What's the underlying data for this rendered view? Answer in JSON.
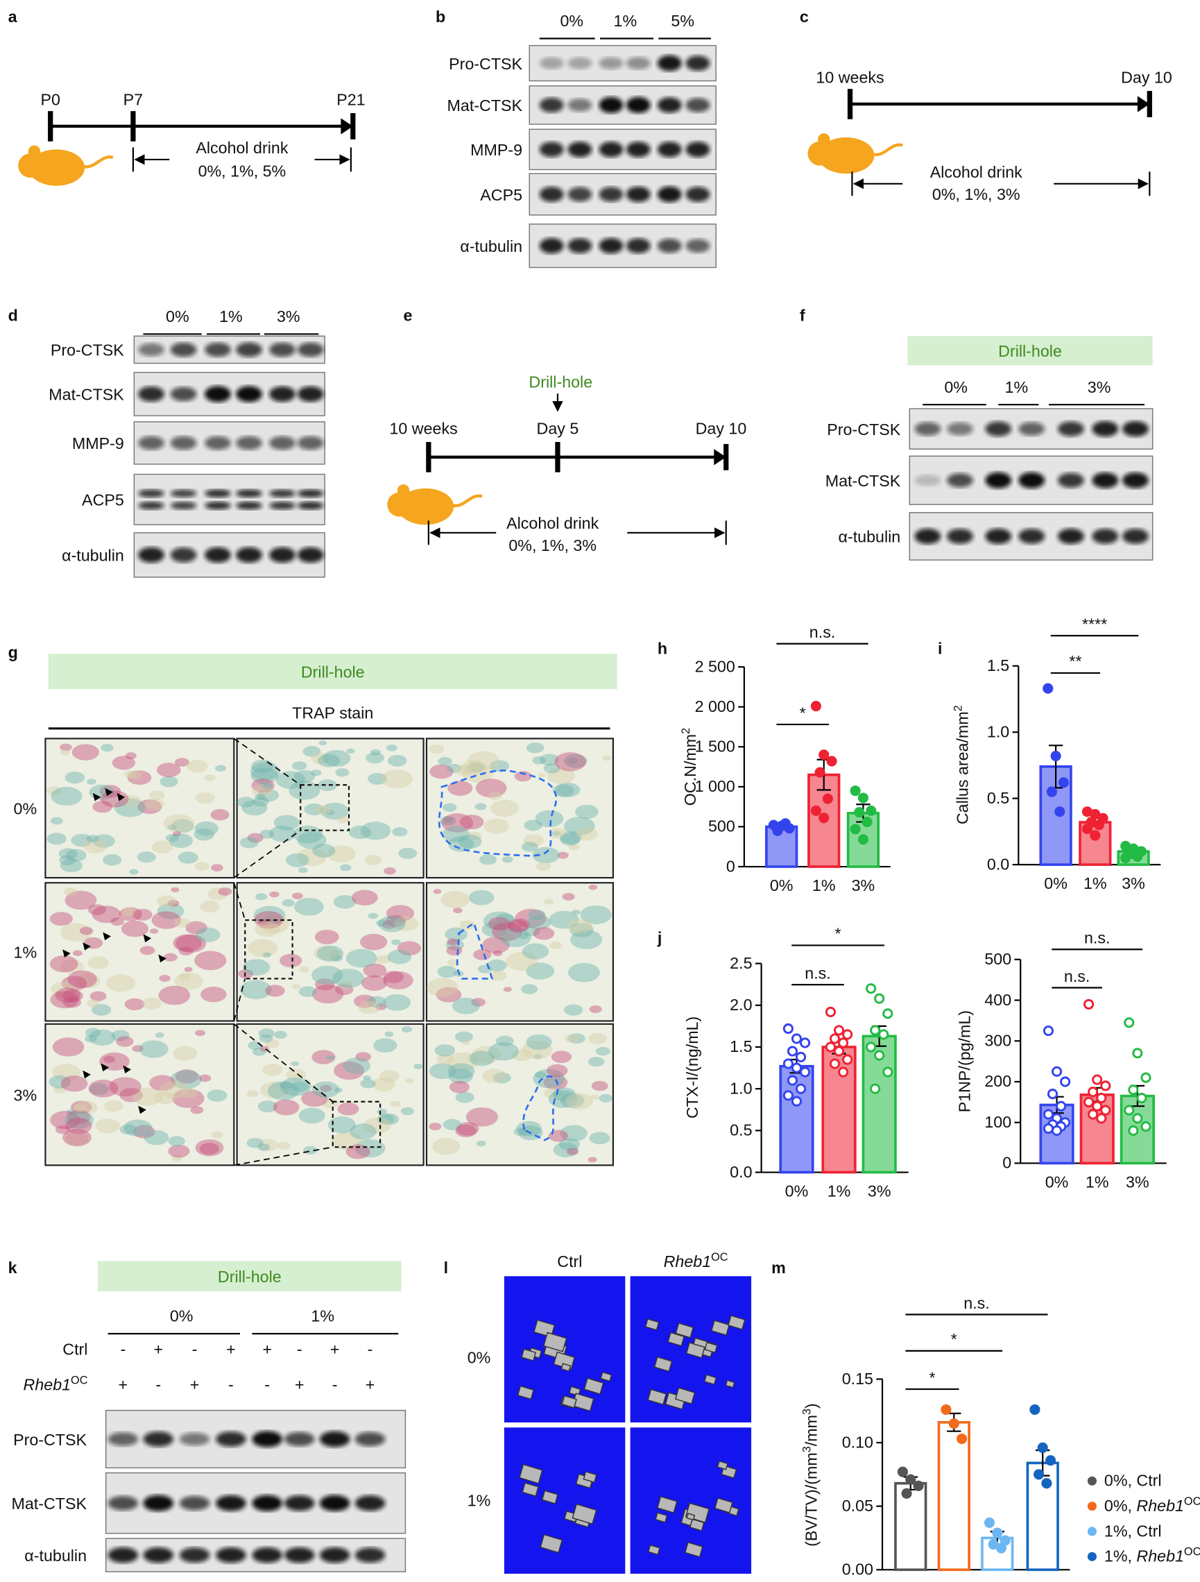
{
  "panel_labels": [
    "a",
    "b",
    "c",
    "d",
    "e",
    "f",
    "g",
    "h",
    "i",
    "j",
    "k",
    "l",
    "m"
  ],
  "timeline_a": {
    "start": "P0",
    "mid": "P7",
    "end": "P21",
    "caption": [
      "Alcohol drink",
      "0%, 1%, 5%"
    ]
  },
  "blot_b": {
    "groups": [
      "0%",
      "1%",
      "5%"
    ],
    "rows": [
      "Pro-CTSK",
      "Mat-CTSK",
      "MMP-9",
      "ACP5",
      "α-tubulin"
    ]
  },
  "timeline_c": {
    "start": "10 weeks",
    "end": "Day 10",
    "caption": [
      "Alcohol drink",
      "0%, 1%, 3%"
    ]
  },
  "blot_d": {
    "groups": [
      "0%",
      "1%",
      "3%"
    ],
    "rows": [
      "Pro-CTSK",
      "Mat-CTSK",
      "MMP-9",
      "ACP5",
      "α-tubulin"
    ]
  },
  "timeline_e": {
    "start": "10 weeks",
    "mid": "Day 5",
    "end": "Day 10",
    "event": "Drill-hole",
    "caption": [
      "Alcohol drink",
      "0%, 1%, 3%"
    ]
  },
  "blot_f": {
    "banner": "Drill-hole",
    "groups": [
      "0%",
      "1%",
      "3%"
    ],
    "rows": [
      "Pro-CTSK",
      "Mat-CTSK",
      "α-tubulin"
    ]
  },
  "histology_g": {
    "banner": "Drill-hole",
    "title": "TRAP stain",
    "rows": [
      "0%",
      "1%",
      "3%"
    ]
  },
  "chart_data": [
    {
      "type": "bar",
      "ylabel": [
        {
          "text": "OC.N/mm"
        },
        {
          "text": "2",
          "sup": true
        }
      ],
      "categories": [
        "0%",
        "1%",
        "3%"
      ],
      "values": [
        500,
        1150,
        670
      ],
      "errors": [
        30,
        190,
        110
      ],
      "points": [
        [
          520,
          510,
          480,
          450,
          540
        ],
        [
          2010,
          1400,
          1320,
          1180,
          850,
          700,
          610
        ],
        [
          950,
          860,
          700,
          680,
          560,
          470,
          340
        ]
      ],
      "colors": [
        "#3344ee",
        "#ee2233",
        "#22bb44"
      ],
      "bar_style": "filled",
      "point_style": "filled",
      "ylim": [
        0,
        2500
      ],
      "yticks": [
        0,
        500,
        {
          "value": 1000,
          "label": "1 000"
        },
        {
          "value": 1500,
          "label": "1 500"
        },
        {
          "value": 2000,
          "label": "2 000"
        },
        {
          "value": 2500,
          "label": "2 500"
        }
      ],
      "significance": [
        {
          "from": 0,
          "to": 1,
          "label": "*"
        },
        {
          "from": 0,
          "to": 2,
          "label": "n.s."
        }
      ]
    },
    {
      "type": "bar",
      "ylabel": [
        {
          "text": "Callus area/mm"
        },
        {
          "text": "2",
          "sup": true
        }
      ],
      "categories": [
        "0%",
        "1%",
        "3%"
      ],
      "values": [
        0.74,
        0.32,
        0.1
      ],
      "errors": [
        0.16,
        0.03,
        0.02
      ],
      "points": [
        [
          1.33,
          0.82,
          0.62,
          0.55,
          0.4
        ],
        [
          0.4,
          0.38,
          0.35,
          0.32,
          0.3,
          0.27,
          0.22
        ],
        [
          0.14,
          0.12,
          0.1,
          0.08,
          0.06,
          0.05
        ]
      ],
      "colors": [
        "#3344ee",
        "#ee2233",
        "#22bb44"
      ],
      "bar_style": "filled",
      "point_style": "filled",
      "ylim": [
        0,
        1.5
      ],
      "yticks": [
        {
          "value": 0,
          "label": "0.0"
        },
        0.5,
        {
          "value": 1,
          "label": "1.0"
        },
        1.5
      ],
      "significance": [
        {
          "from": 0,
          "to": 1,
          "label": "**"
        },
        {
          "from": 0,
          "to": 2,
          "label": "****"
        }
      ]
    },
    {
      "type": "bar",
      "ylabel": "CTX-I/(ng/mL)",
      "categories": [
        "0%",
        "1%",
        "3%"
      ],
      "values": [
        1.27,
        1.5,
        1.63
      ],
      "errors": [
        0.08,
        0.08,
        0.12
      ],
      "points": [
        [
          1.72,
          1.6,
          1.55,
          1.45,
          1.38,
          1.3,
          1.25,
          1.2,
          1.1,
          1.0,
          0.92,
          0.85
        ],
        [
          1.92,
          1.7,
          1.65,
          1.6,
          1.55,
          1.5,
          1.45,
          1.35,
          1.3,
          1.2
        ],
        [
          2.2,
          2.08,
          1.9,
          1.7,
          1.65,
          1.5,
          1.4,
          1.2,
          1.0
        ]
      ],
      "colors": [
        "#3344ee",
        "#ee2233",
        "#22bb44"
      ],
      "bar_style": "filled",
      "point_style": "open",
      "ylim": [
        0,
        2.5
      ],
      "yticks": [
        {
          "value": 0,
          "label": "0.0"
        },
        0.5,
        {
          "value": 1,
          "label": "1.0"
        },
        1.5,
        {
          "value": 2,
          "label": "2.0"
        },
        2.5
      ],
      "significance": [
        {
          "from": 0,
          "to": 1,
          "label": "n.s."
        },
        {
          "from": 0,
          "to": 2,
          "label": "*"
        }
      ]
    },
    {
      "type": "bar",
      "ylabel": "P1NP/(pg/mL)",
      "categories": [
        "0%",
        "1%",
        "3%"
      ],
      "values": [
        143,
        168,
        165
      ],
      "errors": [
        20,
        17,
        25
      ],
      "points": [
        [
          325,
          225,
          200,
          170,
          140,
          120,
          110,
          100,
          95,
          90,
          85,
          80
        ],
        [
          390,
          205,
          190,
          175,
          160,
          150,
          140,
          130,
          120,
          110
        ],
        [
          345,
          270,
          210,
          180,
          160,
          130,
          110,
          90,
          80
        ]
      ],
      "colors": [
        "#3344ee",
        "#ee2233",
        "#22bb44"
      ],
      "bar_style": "filled",
      "point_style": "open",
      "ylim": [
        0,
        500
      ],
      "yticks": [
        0,
        100,
        200,
        300,
        400,
        500
      ],
      "significance": [
        {
          "from": 0,
          "to": 1,
          "label": "n.s."
        },
        {
          "from": 0,
          "to": 2,
          "label": "n.s."
        }
      ]
    },
    {
      "type": "bar",
      "ylabel": [
        {
          "text": "(BV/TV)/(mm"
        },
        {
          "text": "3",
          "sup": true
        },
        {
          "text": "/mm"
        },
        {
          "text": "3",
          "sup": true
        },
        {
          "text": ")"
        }
      ],
      "categories": [
        "0%, Ctrl",
        [
          {
            "text": "0%, "
          },
          {
            "text": "Rheb1",
            "italic": true
          },
          {
            "text": "OC",
            "sup": true
          }
        ],
        "1%, Ctrl",
        [
          {
            "text": "1%, "
          },
          {
            "text": "Rheb1",
            "italic": true
          },
          {
            "text": "OC",
            "sup": true
          }
        ]
      ],
      "values": [
        0.068,
        0.116,
        0.025,
        0.084
      ],
      "errors": [
        0.005,
        0.007,
        0.005,
        0.01
      ],
      "points": [
        [
          0.077,
          0.071,
          0.066,
          0.06
        ],
        [
          0.126,
          0.115,
          0.103
        ],
        [
          0.037,
          0.029,
          0.023,
          0.02,
          0.017
        ],
        [
          0.126,
          0.096,
          0.086,
          0.075,
          0.068
        ]
      ],
      "colors": [
        "#555555",
        "#f26a1b",
        "#6cb6f2",
        "#1565c0"
      ],
      "bar_style": "open",
      "point_style": "filled",
      "legend": "lower right",
      "ylim": [
        0,
        0.15
      ],
      "yticks": [
        {
          "value": 0,
          "label": "0.00"
        },
        0.05,
        {
          "value": 0.1,
          "label": "0.10"
        },
        0.15
      ],
      "significance": [
        {
          "from": 0,
          "to": 1,
          "label": "*"
        },
        {
          "from": 0,
          "to": 2,
          "label": "*"
        },
        {
          "from": 0,
          "to": 3,
          "label": "n.s."
        }
      ]
    }
  ],
  "blot_k": {
    "banner": "Drill-hole",
    "groups": [
      "0%",
      "1%"
    ],
    "row_labels": [
      "Ctrl",
      [
        {
          "text": "Rheb1",
          "italic": true
        },
        {
          "text": "OC",
          "sup": true
        }
      ]
    ],
    "signs": [
      [
        "-",
        "+",
        "-",
        "+",
        "+",
        "-",
        "+",
        "-"
      ],
      [
        "+",
        "-",
        "+",
        "-",
        "-",
        "+",
        "-",
        "+"
      ]
    ],
    "rows": [
      "Pro-CTSK",
      "Mat-CTSK",
      "α-tubulin"
    ]
  },
  "microct_l": {
    "columns": [
      "Ctrl",
      [
        {
          "text": "Rheb1",
          "italic": true
        },
        {
          "text": "OC",
          "sup": true
        }
      ]
    ],
    "rows": [
      "0%",
      "1%"
    ]
  }
}
